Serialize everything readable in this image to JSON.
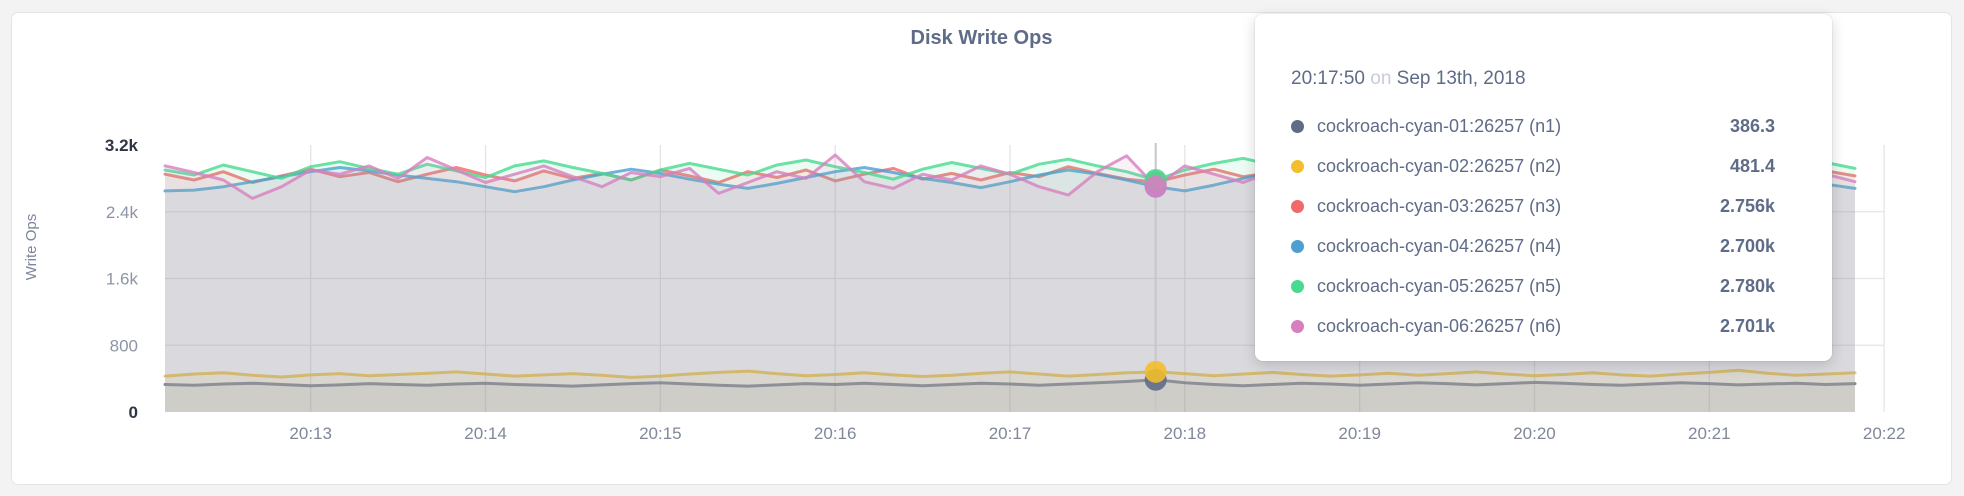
{
  "page": {
    "background": "#f3f3f4"
  },
  "chart": {
    "title": "Disk Write Ops",
    "y_axis_label": "Write Ops"
  },
  "tooltip": {
    "time": "20:17:50",
    "on_word": "on",
    "date": "Sep 13th, 2018",
    "rows": [
      {
        "label": "cockroach-cyan-01:26257 (n1)",
        "value": "386.3",
        "color": "#5F6C87"
      },
      {
        "label": "cockroach-cyan-02:26257 (n2)",
        "value": "481.4",
        "color": "#F2BE2C"
      },
      {
        "label": "cockroach-cyan-03:26257 (n3)",
        "value": "2.756k",
        "color": "#F16969"
      },
      {
        "label": "cockroach-cyan-04:26257 (n4)",
        "value": "2.700k",
        "color": "#4E9FD1"
      },
      {
        "label": "cockroach-cyan-05:26257 (n5)",
        "value": "2.780k",
        "color": "#49D990"
      },
      {
        "label": "cockroach-cyan-06:26257 (n6)",
        "value": "2.701k",
        "color": "#D77FBF"
      }
    ]
  },
  "chart_data": {
    "type": "area",
    "title": "Disk Write Ops",
    "ylabel": "Write Ops",
    "xlabel": "",
    "grid": true,
    "legend_position": "tooltip",
    "ylim": [
      0,
      3200
    ],
    "y_ticks": [
      {
        "label": "3.2k",
        "value": 3200,
        "emphasis": true,
        "grid": false
      },
      {
        "label": "2.4k",
        "value": 2400,
        "emphasis": false,
        "grid": true
      },
      {
        "label": "1.6k",
        "value": 1600,
        "emphasis": false,
        "grid": true
      },
      {
        "label": "800",
        "value": 800,
        "emphasis": false,
        "grid": true
      },
      {
        "label": "0",
        "value": 0,
        "emphasis": true,
        "grid": false
      }
    ],
    "x_start": "20:12:10",
    "x_end": "20:21:50",
    "x_interval_seconds": 10,
    "x_tick_labels": [
      "20:13",
      "20:14",
      "20:15",
      "20:16",
      "20:17",
      "20:18",
      "20:19",
      "20:20",
      "20:21",
      "20:22"
    ],
    "hover": {
      "index": 34,
      "time_label": "20:17:50",
      "date_label": "Sep 13th, 2018"
    },
    "series": [
      {
        "name": "cockroach-cyan-01:26257 (n1)",
        "color": "#5F6C87",
        "values": [
          330,
          320,
          335,
          345,
          330,
          315,
          325,
          340,
          330,
          320,
          335,
          345,
          330,
          320,
          310,
          325,
          340,
          350,
          335,
          320,
          310,
          325,
          340,
          330,
          345,
          330,
          315,
          330,
          345,
          335,
          320,
          335,
          350,
          365,
          386.3,
          350,
          330,
          315,
          330,
          345,
          335,
          320,
          335,
          350,
          340,
          325,
          340,
          355,
          345,
          330,
          320,
          335,
          350,
          340,
          325,
          335,
          345,
          330,
          340
        ]
      },
      {
        "name": "cockroach-cyan-02:26257 (n2)",
        "color": "#F2BE2C",
        "values": [
          430,
          455,
          470,
          440,
          420,
          445,
          460,
          435,
          450,
          465,
          480,
          455,
          430,
          445,
          460,
          440,
          415,
          430,
          455,
          475,
          490,
          460,
          435,
          450,
          470,
          445,
          425,
          440,
          465,
          480,
          455,
          430,
          450,
          470,
          481.4,
          460,
          435,
          455,
          475,
          450,
          430,
          445,
          465,
          440,
          460,
          480,
          455,
          435,
          450,
          470,
          445,
          430,
          455,
          475,
          500,
          465,
          440,
          455,
          470
        ]
      },
      {
        "name": "cockroach-cyan-03:26257 (n3)",
        "color": "#F16969",
        "values": [
          2850,
          2780,
          2880,
          2750,
          2830,
          2910,
          2820,
          2870,
          2760,
          2850,
          2930,
          2840,
          2770,
          2890,
          2800,
          2860,
          2780,
          2900,
          2830,
          2750,
          2880,
          2810,
          2900,
          2770,
          2850,
          2920,
          2790,
          2860,
          2780,
          2870,
          2820,
          2940,
          2860,
          2790,
          2756,
          2840,
          2910,
          2820,
          2870,
          2790,
          2930,
          2850,
          2770,
          2860,
          2910,
          2830,
          2890,
          2750,
          2840,
          2900,
          2810,
          2870,
          2780,
          2850,
          2920,
          2840,
          2800,
          2890,
          2830
        ]
      },
      {
        "name": "cockroach-cyan-04:26257 (n4)",
        "color": "#4E9FD1",
        "values": [
          2650,
          2660,
          2700,
          2760,
          2820,
          2880,
          2930,
          2890,
          2840,
          2800,
          2760,
          2700,
          2640,
          2700,
          2780,
          2850,
          2910,
          2860,
          2790,
          2730,
          2680,
          2740,
          2810,
          2880,
          2930,
          2870,
          2800,
          2750,
          2690,
          2760,
          2840,
          2900,
          2850,
          2780,
          2700,
          2650,
          2720,
          2800,
          2870,
          2920,
          2860,
          2790,
          2720,
          2670,
          2740,
          2820,
          2890,
          2940,
          2880,
          2810,
          2750,
          2700,
          2760,
          2830,
          2900,
          2850,
          2790,
          2730,
          2680
        ]
      },
      {
        "name": "cockroach-cyan-05:26257 (n5)",
        "color": "#49D990",
        "values": [
          2900,
          2840,
          2960,
          2880,
          2800,
          2940,
          3000,
          2920,
          2850,
          2970,
          2890,
          2810,
          2950,
          3010,
          2930,
          2860,
          2780,
          2900,
          2980,
          2910,
          2840,
          2960,
          3020,
          2940,
          2870,
          2790,
          2910,
          2990,
          2920,
          2850,
          2970,
          3030,
          2950,
          2880,
          2780,
          2900,
          2980,
          3040,
          2960,
          2890,
          2810,
          2930,
          3000,
          2920,
          2860,
          2780,
          2940,
          3010,
          2930,
          2850,
          2970,
          2890,
          2820,
          2950,
          3020,
          2940,
          2870,
          2990,
          2920
        ]
      },
      {
        "name": "cockroach-cyan-06:26257 (n6)",
        "color": "#D77FBF",
        "values": [
          2950,
          2870,
          2780,
          2560,
          2700,
          2900,
          2850,
          2950,
          2800,
          3050,
          2900,
          2750,
          2850,
          2950,
          2820,
          2700,
          2870,
          2820,
          2920,
          2620,
          2750,
          2880,
          2800,
          3080,
          2760,
          2680,
          2850,
          2780,
          2950,
          2850,
          2700,
          2600,
          2880,
          3070,
          2701,
          2950,
          2850,
          2750,
          2880,
          2780,
          2850,
          2920,
          2580,
          2700,
          2870,
          3090,
          2820,
          2650,
          2780,
          2900,
          2850,
          2750,
          2830,
          2950,
          2870,
          2780,
          2680,
          2850,
          2760
        ]
      }
    ]
  }
}
